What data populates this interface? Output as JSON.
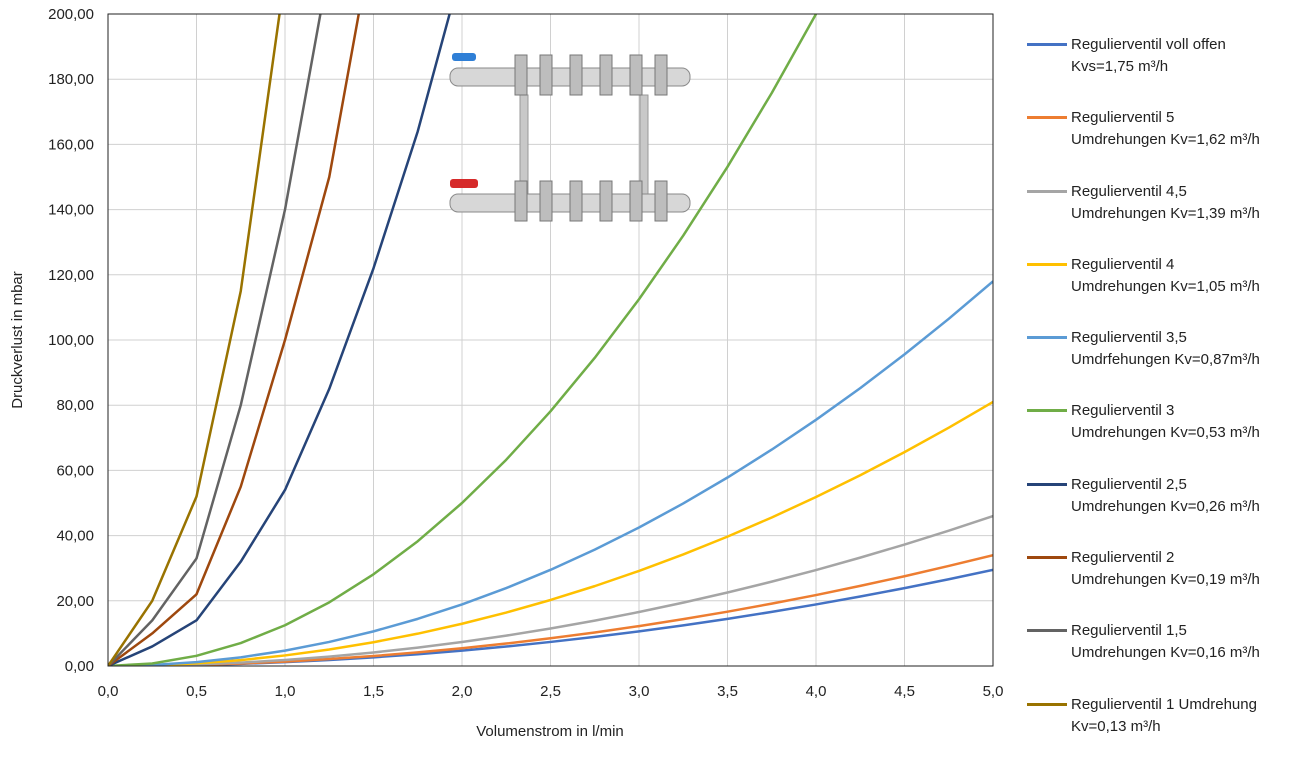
{
  "chart_data": {
    "type": "line",
    "x_label": "Volumenstrom in l/min",
    "y_label": "Druckverlust in mbar",
    "x": [
      0,
      0.25,
      0.5,
      0.75,
      1,
      1.25,
      1.5,
      1.75,
      2,
      2.25,
      2.5,
      2.75,
      3,
      3.25,
      3.5,
      3.75,
      4,
      4.25,
      4.5,
      4.75,
      5
    ],
    "series": [
      {
        "name": "Regulierventil voll offen\nKvs=1,75 m³/h",
        "color": "#4472c4",
        "values": [
          0,
          0.07,
          0.3,
          0.66,
          1.18,
          1.84,
          2.66,
          3.61,
          4.72,
          5.97,
          7.38,
          8.92,
          10.62,
          12.46,
          14.46,
          16.59,
          18.88,
          21.31,
          23.9,
          26.62,
          29.5
        ]
      },
      {
        "name": "Regulierventil 5\nUmdrehungen Kv=1,62 m³/h",
        "color": "#ed7d31",
        "values": [
          0,
          0.09,
          0.34,
          0.77,
          1.36,
          2.13,
          3.06,
          4.17,
          5.44,
          6.89,
          8.5,
          10.29,
          12.24,
          14.37,
          16.66,
          19.13,
          21.76,
          24.57,
          27.54,
          30.69,
          34
        ]
      },
      {
        "name": "Regulierventil 4,5\nUmdrehungen Kv=1,39 m³/h",
        "color": "#a5a5a5",
        "values": [
          0,
          0.12,
          0.46,
          1.04,
          1.84,
          2.88,
          4.14,
          5.64,
          7.36,
          9.32,
          11.5,
          13.92,
          16.56,
          19.44,
          22.54,
          25.88,
          29.44,
          33.24,
          37.26,
          41.52,
          46
        ]
      },
      {
        "name": "Regulierventil 4\nUmdrehungen Kv=1,05 m³/h",
        "color": "#ffc000",
        "values": [
          0,
          0.2,
          0.81,
          1.82,
          3.24,
          5.06,
          7.29,
          9.92,
          12.96,
          16.4,
          20.25,
          24.5,
          29.16,
          34.22,
          39.69,
          45.56,
          51.84,
          58.52,
          65.61,
          73.1,
          81
        ]
      },
      {
        "name": "Regulierventil 3,5\nUmdrfehungen Kv=0,87m³/h",
        "color": "#5b9bd5",
        "values": [
          0,
          0.3,
          1.18,
          2.66,
          4.72,
          7.38,
          10.62,
          14.46,
          18.88,
          23.9,
          29.5,
          35.7,
          42.48,
          49.86,
          57.82,
          66.38,
          75.52,
          85.25,
          95.58,
          106.5,
          118
        ]
      },
      {
        "name": "Regulierventil 3\nUmdrehungen Kv=0,53 m³/h",
        "color": "#70ad47",
        "values": [
          0,
          0.78,
          3.13,
          7.03,
          12.5,
          19.53,
          28.13,
          38.28,
          50,
          63.28,
          78.13,
          94.53,
          112.5,
          132.03,
          153.13,
          175.78,
          200,
          null,
          null,
          null,
          null
        ]
      },
      {
        "name": "Regulierventil 2,5\nUmdrehungen Kv=0,26 m³/h",
        "color": "#264478",
        "values": [
          0,
          6,
          14,
          32,
          54,
          85,
          122,
          164,
          214,
          null,
          null,
          null,
          null,
          null,
          null,
          null,
          null,
          null,
          null,
          null,
          null
        ]
      },
      {
        "name": "Regulierventil 2\nUmdrehungen Kv=0,19 m³/h",
        "color": "#9e480e",
        "values": [
          0,
          10,
          22,
          55,
          100,
          150,
          225,
          null,
          null,
          null,
          null,
          null,
          null,
          null,
          null,
          null,
          null,
          null,
          null,
          null,
          null
        ]
      },
      {
        "name": "Regulierventil 1,5\nUmdrehungen Kv=0,16 m³/h",
        "color": "#636363",
        "values": [
          0,
          14,
          33,
          80,
          140,
          215,
          null,
          null,
          null,
          null,
          null,
          null,
          null,
          null,
          null,
          null,
          null,
          null,
          null,
          null,
          null
        ]
      },
      {
        "name": "Regulierventil 1 Umdrehung\nKv=0,13 m³/h",
        "color": "#997300",
        "values": [
          0,
          20,
          52,
          115,
          212,
          null,
          null,
          null,
          null,
          null,
          null,
          null,
          null,
          null,
          null,
          null,
          null,
          null,
          null,
          null,
          null
        ]
      }
    ],
    "xlim": [
      0,
      5
    ],
    "ylim": [
      0,
      200
    ],
    "xticks": [
      {
        "value": 0,
        "label": "0,0"
      },
      {
        "value": 0.5,
        "label": "0,5"
      },
      {
        "value": 1,
        "label": "1,0"
      },
      {
        "value": 1.5,
        "label": "1,5"
      },
      {
        "value": 2,
        "label": "2,0"
      },
      {
        "value": 2.5,
        "label": "2,5"
      },
      {
        "value": 3,
        "label": "3,0"
      },
      {
        "value": 3.5,
        "label": "3,5"
      },
      {
        "value": 4,
        "label": "4,0"
      },
      {
        "value": 4.5,
        "label": "4,5"
      },
      {
        "value": 5,
        "label": "5,0"
      }
    ],
    "yticks": [
      {
        "value": 0,
        "label": "0,00"
      },
      {
        "value": 20,
        "label": "20,00"
      },
      {
        "value": 40,
        "label": "40,00"
      },
      {
        "value": 60,
        "label": "60,00"
      },
      {
        "value": 80,
        "label": "80,00"
      },
      {
        "value": 100,
        "label": "100,00"
      },
      {
        "value": 120,
        "label": "120,00"
      },
      {
        "value": 140,
        "label": "140,00"
      },
      {
        "value": 160,
        "label": "160,00"
      },
      {
        "value": 180,
        "label": "180,00"
      },
      {
        "value": 200,
        "label": "200,00"
      }
    ],
    "grid": true
  }
}
